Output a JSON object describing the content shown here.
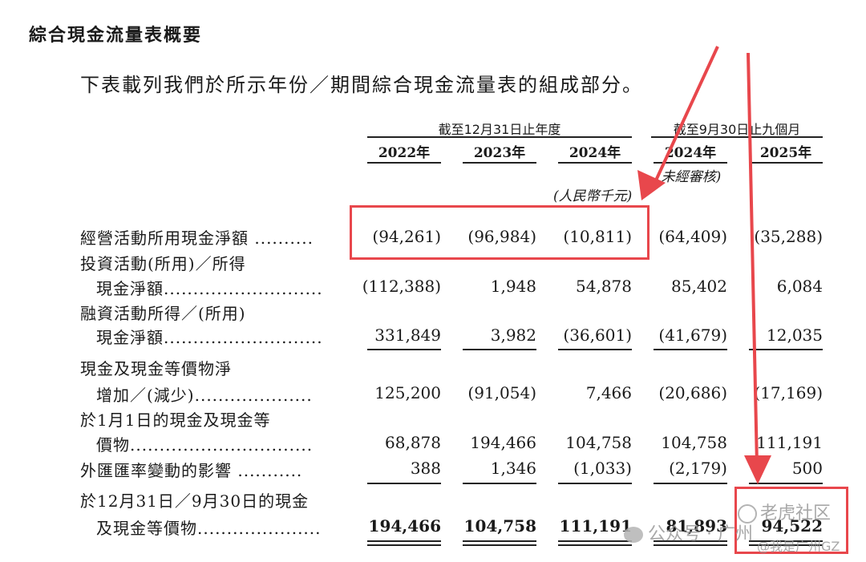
{
  "heading": "綜合現金流量表概要",
  "intro": "下表載列我們於所示年份／期間綜合現金流量表的組成部分。",
  "header": {
    "group1": "截至12月31日止年度",
    "group2": "截至9月30日止九個月",
    "years": [
      "2022年",
      "2023年",
      "2024年",
      "2024年",
      "2025年"
    ],
    "unaudited": "(未經審核)",
    "unit": "(人民幣千元)"
  },
  "rows": [
    {
      "label1": "經營活動所用現金淨額 ..........",
      "label2": "",
      "values": [
        "(94,261)",
        "(96,984)",
        "(10,811)",
        "(64,409)",
        "(35,288)"
      ]
    },
    {
      "label1": "投資活動(所用)／所得",
      "label2": "現金淨額...........................",
      "values": [
        "(112,388)",
        "1,948",
        "54,878",
        "85,402",
        "6,084"
      ]
    },
    {
      "label1": "融資活動所得／(所用)",
      "label2": "現金淨額...........................",
      "values": [
        "331,849",
        "3,982",
        "(36,601)",
        "(41,679)",
        "12,035"
      ]
    },
    {
      "label1": "現金及現金等價物淨",
      "label2": "增加／(減少)....................",
      "values": [
        "125,200",
        "(91,054)",
        "7,466",
        "(20,686)",
        "(17,169)"
      ]
    },
    {
      "label1": "於1月1日的現金及現金等",
      "label2": "價物...............................",
      "values": [
        "68,878",
        "194,466",
        "104,758",
        "104,758",
        "111,191"
      ]
    },
    {
      "label1": "外匯匯率變動的影響 ...........",
      "label2": "",
      "values": [
        "388",
        "1,346",
        "(1,033)",
        "(2,179)",
        "500"
      ]
    },
    {
      "label1": "於12月31日／9月30日的現金",
      "label2": "及現金等價物.....................",
      "values": [
        "194,466",
        "104,758",
        "111,191",
        "81,893",
        "94,522"
      ]
    }
  ],
  "watermark": {
    "wechat": "公众号 · 广州",
    "community": "老虎社区",
    "handle": "@我是广州GZ"
  },
  "colors": {
    "annotation_red": "#e8474c",
    "text": "#1a1a1a"
  }
}
